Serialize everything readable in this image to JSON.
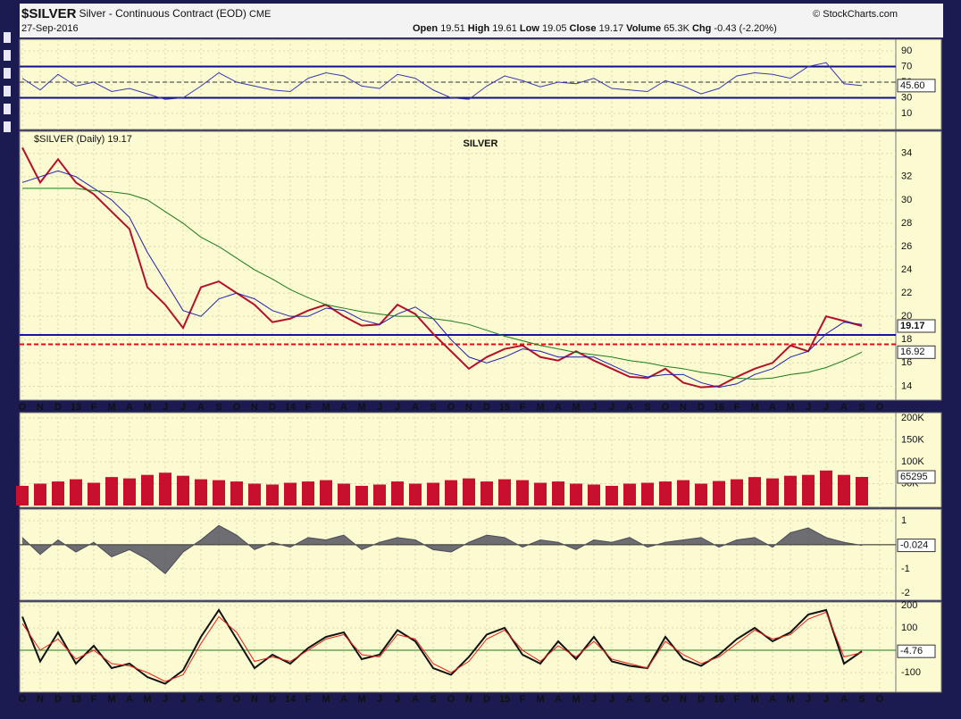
{
  "header": {
    "symbol": "$SILVER",
    "description": "Silver - Continuous Contract (EOD)",
    "exchange": "CME",
    "date": "27-Sep-2016",
    "copyright": "© StockCharts.com",
    "stats": [
      {
        "label": "Open",
        "value": "19.51"
      },
      {
        "label": "High",
        "value": "19.61"
      },
      {
        "label": "Low",
        "value": "19.05"
      },
      {
        "label": "Close",
        "value": "19.17"
      },
      {
        "label": "Volume",
        "value": "65.3K"
      },
      {
        "label": "Chg",
        "value": "-0.43 (-2.20%)"
      }
    ]
  },
  "chart_data": [
    {
      "type": "line",
      "ylim": [
        -10.6,
        104.9
      ],
      "yticks": [
        90,
        70,
        50,
        30,
        10
      ],
      "grid": true,
      "hlines": [
        {
          "value": 70,
          "color": "#10108a",
          "width": 2
        },
        {
          "value": 30,
          "color": "#10108a",
          "width": 2
        },
        {
          "value": 50,
          "color": "#333",
          "width": 1,
          "dash": true
        }
      ],
      "series": [
        {
          "color": "#3a3ab0",
          "label_last": true,
          "values": [
            55,
            40,
            60,
            45,
            50,
            38,
            42,
            35,
            28,
            30,
            45,
            62,
            50,
            45,
            40,
            38,
            55,
            62,
            58,
            45,
            42,
            60,
            55,
            40,
            30,
            28,
            45,
            58,
            52,
            44,
            50,
            48,
            55,
            42,
            40,
            38,
            52,
            45,
            35,
            42,
            58,
            62,
            60,
            55,
            70,
            75,
            48,
            45.6,
            null
          ],
          "value_labels": [
            null,
            null,
            null,
            null,
            null,
            null,
            null,
            null,
            null,
            null,
            null,
            null,
            null,
            null,
            null,
            null,
            null,
            null,
            null,
            null,
            null,
            null,
            null,
            null,
            null,
            null,
            null,
            null,
            null,
            null,
            null,
            null,
            null,
            null,
            null,
            null,
            null,
            null,
            null,
            null,
            null,
            null,
            null,
            null,
            null,
            null,
            null,
            "45.60",
            null
          ]
        }
      ]
    },
    {
      "type": "line",
      "ylim": [
        12.8,
        35.9
      ],
      "yticks": [
        14,
        16,
        18,
        20,
        22,
        24,
        26,
        28,
        30,
        32,
        34
      ],
      "grid": true,
      "categories": [
        "O",
        "N",
        "D",
        "13",
        "F",
        "M",
        "A",
        "M",
        "J",
        "J",
        "A",
        "S",
        "O",
        "N",
        "D",
        "14",
        "F",
        "M",
        "A",
        "M",
        "J",
        "J",
        "A",
        "S",
        "O",
        "N",
        "D",
        "15",
        "F",
        "M",
        "A",
        "M",
        "J",
        "J",
        "A",
        "S",
        "O",
        "N",
        "D",
        "16",
        "F",
        "M",
        "A",
        "M",
        "J",
        "J",
        "A",
        "S",
        "O"
      ],
      "annotations": [
        {
          "text": "SILVER",
          "color": "#1a6fd6"
        }
      ],
      "hlines": [
        {
          "value": 18.4,
          "color": "#1414a8",
          "width": 2
        },
        {
          "value": 17.6,
          "color": "#e01010",
          "width": 2,
          "dash": true
        }
      ],
      "series": [
        {
          "name": "$SILVER (Daily)",
          "color": "#b5102c",
          "width": 2,
          "label_last": true,
          "values": [
            34.5,
            31.5,
            33.5,
            31.5,
            30.5,
            29,
            27.5,
            22.5,
            21,
            19,
            22.5,
            23,
            22,
            21,
            19.5,
            19.8,
            20.5,
            21,
            20,
            19.2,
            19.3,
            21,
            20.2,
            18.5,
            17,
            15.5,
            16.5,
            17.2,
            17.5,
            16.5,
            16.2,
            17,
            16.2,
            15.5,
            14.8,
            14.7,
            15.5,
            14.3,
            13.9,
            14,
            14.8,
            15.5,
            16,
            17.5,
            17,
            20,
            19.6,
            19.17,
            null
          ]
        },
        {
          "color": "#2020b0",
          "width": 1,
          "values": [
            31.5,
            32,
            32.5,
            32,
            31,
            30,
            28.5,
            25.5,
            23,
            20.5,
            20,
            21.5,
            22,
            21.5,
            20.5,
            20,
            20,
            20.7,
            20.5,
            19.7,
            19.3,
            20.2,
            20.8,
            19.8,
            18,
            16.5,
            16,
            16.5,
            17.2,
            17,
            16.5,
            16.5,
            16.5,
            15.8,
            15.1,
            14.8,
            15,
            15,
            14.3,
            13.9,
            14.2,
            15,
            15.5,
            16.5,
            17,
            18.5,
            19.5,
            19.3,
            null
          ]
        },
        {
          "color": "#1e7a1e",
          "width": 1,
          "label_last": true,
          "values": [
            31,
            31,
            31,
            31,
            30.8,
            30.7,
            30.5,
            30,
            29,
            28,
            26.8,
            26,
            25,
            24,
            23.2,
            22.3,
            21.6,
            21,
            20.7,
            20.4,
            20.2,
            20,
            20,
            19.8,
            19.6,
            19.3,
            18.8,
            18.3,
            17.9,
            17.5,
            17.2,
            16.9,
            16.7,
            16.5,
            16.2,
            16,
            15.7,
            15.5,
            15.2,
            15,
            14.7,
            14.6,
            14.7,
            15,
            15.2,
            15.6,
            16.2,
            16.92,
            null
          ]
        }
      ]
    },
    {
      "type": "bar",
      "ylim": [
        -4000,
        212000
      ],
      "yticks": [
        {
          "value": 200000,
          "label": "200K"
        },
        {
          "value": 150000,
          "label": "150K"
        },
        {
          "value": 100000,
          "label": "100K"
        },
        {
          "value": 50000,
          "label": "50K"
        }
      ],
      "grid": true,
      "series": [
        {
          "color": "#c8102e",
          "label_last": true,
          "values": [
            45000,
            50000,
            55000,
            60000,
            52000,
            65000,
            62000,
            70000,
            75000,
            68000,
            60000,
            58000,
            55000,
            50000,
            48000,
            52000,
            55000,
            58000,
            50000,
            45000,
            48000,
            55000,
            50000,
            52000,
            58000,
            62000,
            55000,
            60000,
            58000,
            52000,
            55000,
            50000,
            48000,
            45000,
            50000,
            52000,
            55000,
            58000,
            50000,
            56000,
            60000,
            65000,
            62000,
            68000,
            70000,
            80000,
            70000,
            65295,
            null
          ]
        }
      ]
    },
    {
      "type": "area",
      "ylim": [
        -2.3,
        1.48
      ],
      "yticks": [
        1,
        -1,
        -2
      ],
      "grid": true,
      "hlines": [
        {
          "value": 0,
          "color": "#222",
          "width": 1
        }
      ],
      "series": [
        {
          "color": "#4a4a5a",
          "label_last": true,
          "values": [
            0.3,
            -0.4,
            0.2,
            -0.3,
            0.1,
            -0.5,
            -0.2,
            -0.6,
            -1.2,
            -0.3,
            0.2,
            0.8,
            0.4,
            -0.2,
            0.1,
            -0.1,
            0.3,
            0.2,
            0.4,
            -0.2,
            0.1,
            0.3,
            0.2,
            -0.2,
            -0.3,
            0.1,
            0.4,
            0.3,
            -0.1,
            0.2,
            0.1,
            -0.2,
            0.2,
            0.1,
            0.3,
            -0.1,
            0.1,
            0.2,
            0.3,
            -0.1,
            0.2,
            0.3,
            -0.1,
            0.5,
            0.7,
            0.3,
            0.1,
            -0.024,
            null
          ]
        }
      ]
    },
    {
      "type": "line",
      "ylim": [
        -188,
        216
      ],
      "yticks": [
        200,
        100,
        -100
      ],
      "grid": true,
      "categories": [
        "O",
        "N",
        "D",
        "13",
        "F",
        "M",
        "A",
        "M",
        "J",
        "J",
        "A",
        "S",
        "O",
        "N",
        "D",
        "14",
        "F",
        "M",
        "A",
        "M",
        "J",
        "J",
        "A",
        "S",
        "O",
        "N",
        "D",
        "15",
        "F",
        "M",
        "A",
        "M",
        "J",
        "J",
        "A",
        "S",
        "O",
        "N",
        "D",
        "16",
        "F",
        "M",
        "A",
        "M",
        "J",
        "J",
        "A",
        "S",
        "O"
      ],
      "hlines": [
        {
          "value": 0,
          "color": "#1e7a1e",
          "width": 1
        }
      ],
      "series": [
        {
          "color": "#111",
          "width": 2,
          "label_last": true,
          "values": [
            150,
            -50,
            80,
            -60,
            20,
            -80,
            -60,
            -120,
            -150,
            -90,
            60,
            180,
            50,
            -80,
            -20,
            -60,
            10,
            60,
            80,
            -40,
            -20,
            90,
            40,
            -80,
            -110,
            -30,
            70,
            100,
            -20,
            -60,
            40,
            -40,
            60,
            -50,
            -70,
            -80,
            60,
            -40,
            -70,
            -20,
            50,
            100,
            40,
            80,
            160,
            180,
            -60,
            -4.76,
            null
          ]
        },
        {
          "color": "#e8201a",
          "width": 1,
          "values": [
            120,
            0,
            50,
            -40,
            0,
            -60,
            -70,
            -100,
            -140,
            -110,
            30,
            150,
            80,
            -50,
            -30,
            -50,
            0,
            50,
            70,
            -20,
            -30,
            70,
            50,
            -60,
            -100,
            -50,
            50,
            90,
            0,
            -50,
            20,
            -30,
            40,
            -40,
            -60,
            -80,
            40,
            -20,
            -60,
            -30,
            30,
            90,
            50,
            70,
            140,
            170,
            -30,
            -10,
            null
          ]
        }
      ]
    }
  ]
}
